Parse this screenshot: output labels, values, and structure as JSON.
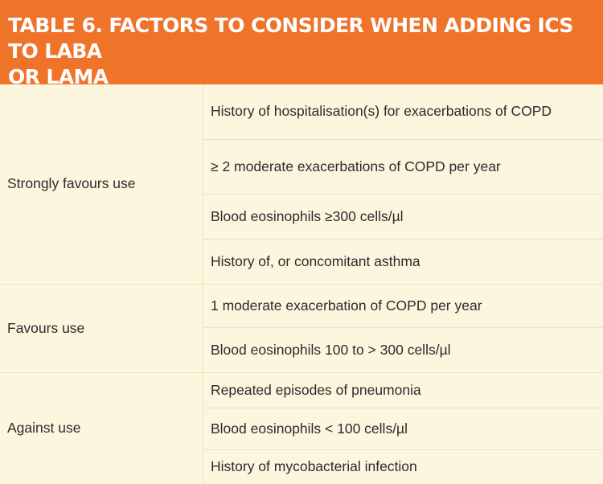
{
  "header": {
    "title_line1": "TABLE 6. FACTORS TO CONSIDER WHEN ADDING ICS TO LABA",
    "title_line2": "OR LAMA"
  },
  "groups": [
    {
      "category": "Strongly favours use",
      "factors": [
        "History of hospitalisation(s) for exacerbations of COPD",
        "≥ 2 moderate exacerbations of COPD per year",
        "Blood eosinophils ≥300 cells/µl",
        "History of, or concomitant asthma"
      ]
    },
    {
      "category": "Favours use",
      "factors": [
        "1 moderate exacerbation of COPD per year",
        "Blood eosinophils 100 to > 300 cells/µl"
      ]
    },
    {
      "category": "Against use",
      "factors": [
        "Repeated episodes of pneumonia",
        "Blood eosinophils < 100 cells/µl",
        "History of mycobacterial infection"
      ]
    }
  ]
}
